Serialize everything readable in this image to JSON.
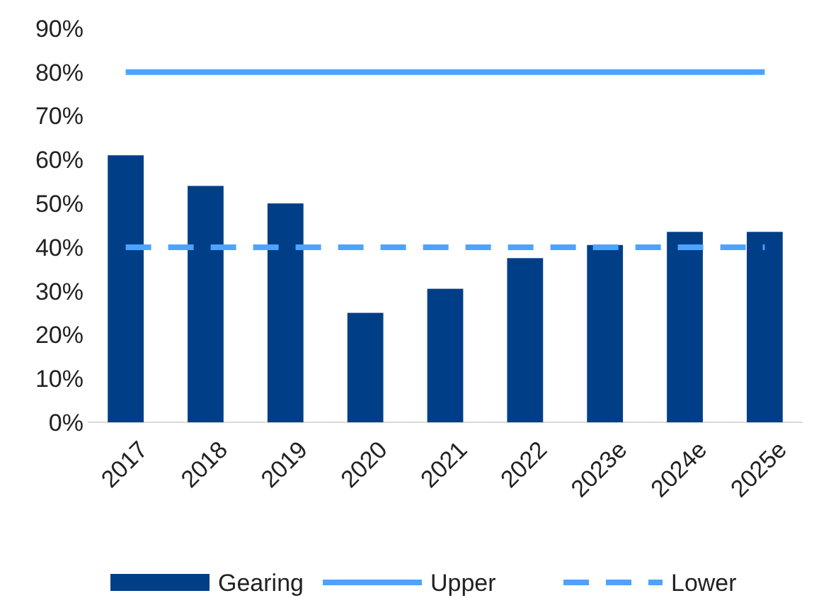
{
  "chart_data": {
    "type": "bar",
    "categories": [
      "2017",
      "2018",
      "2019",
      "2020",
      "2021",
      "2022",
      "2023e",
      "2024e",
      "2025e"
    ],
    "series": [
      {
        "name": "Gearing",
        "color": "#003f87",
        "values": [
          61,
          54,
          50,
          25,
          30.5,
          37.5,
          40.5,
          43.5,
          43.5
        ]
      },
      {
        "name": "Upper",
        "type": "line",
        "color": "#4da3ff",
        "line_style": "solid",
        "values": [
          80,
          80,
          80,
          80,
          80,
          80,
          80,
          80,
          80
        ]
      },
      {
        "name": "Lower",
        "type": "line",
        "color": "#4da3ff",
        "line_style": "dashed",
        "values": [
          40,
          40,
          40,
          40,
          40,
          40,
          40,
          40,
          40
        ]
      }
    ],
    "ylim": [
      0,
      90
    ],
    "yticks": [
      {
        "value": 0,
        "label": "0%"
      },
      {
        "value": 10,
        "label": "10%"
      },
      {
        "value": 20,
        "label": "20%"
      },
      {
        "value": 30,
        "label": "30%"
      },
      {
        "value": 40,
        "label": "40%"
      },
      {
        "value": 50,
        "label": "50%"
      },
      {
        "value": 60,
        "label": "60%"
      },
      {
        "value": 70,
        "label": "70%"
      },
      {
        "value": 80,
        "label": "80%"
      },
      {
        "value": 90,
        "label": "90%"
      }
    ],
    "grid": false,
    "legend": "bottom"
  }
}
